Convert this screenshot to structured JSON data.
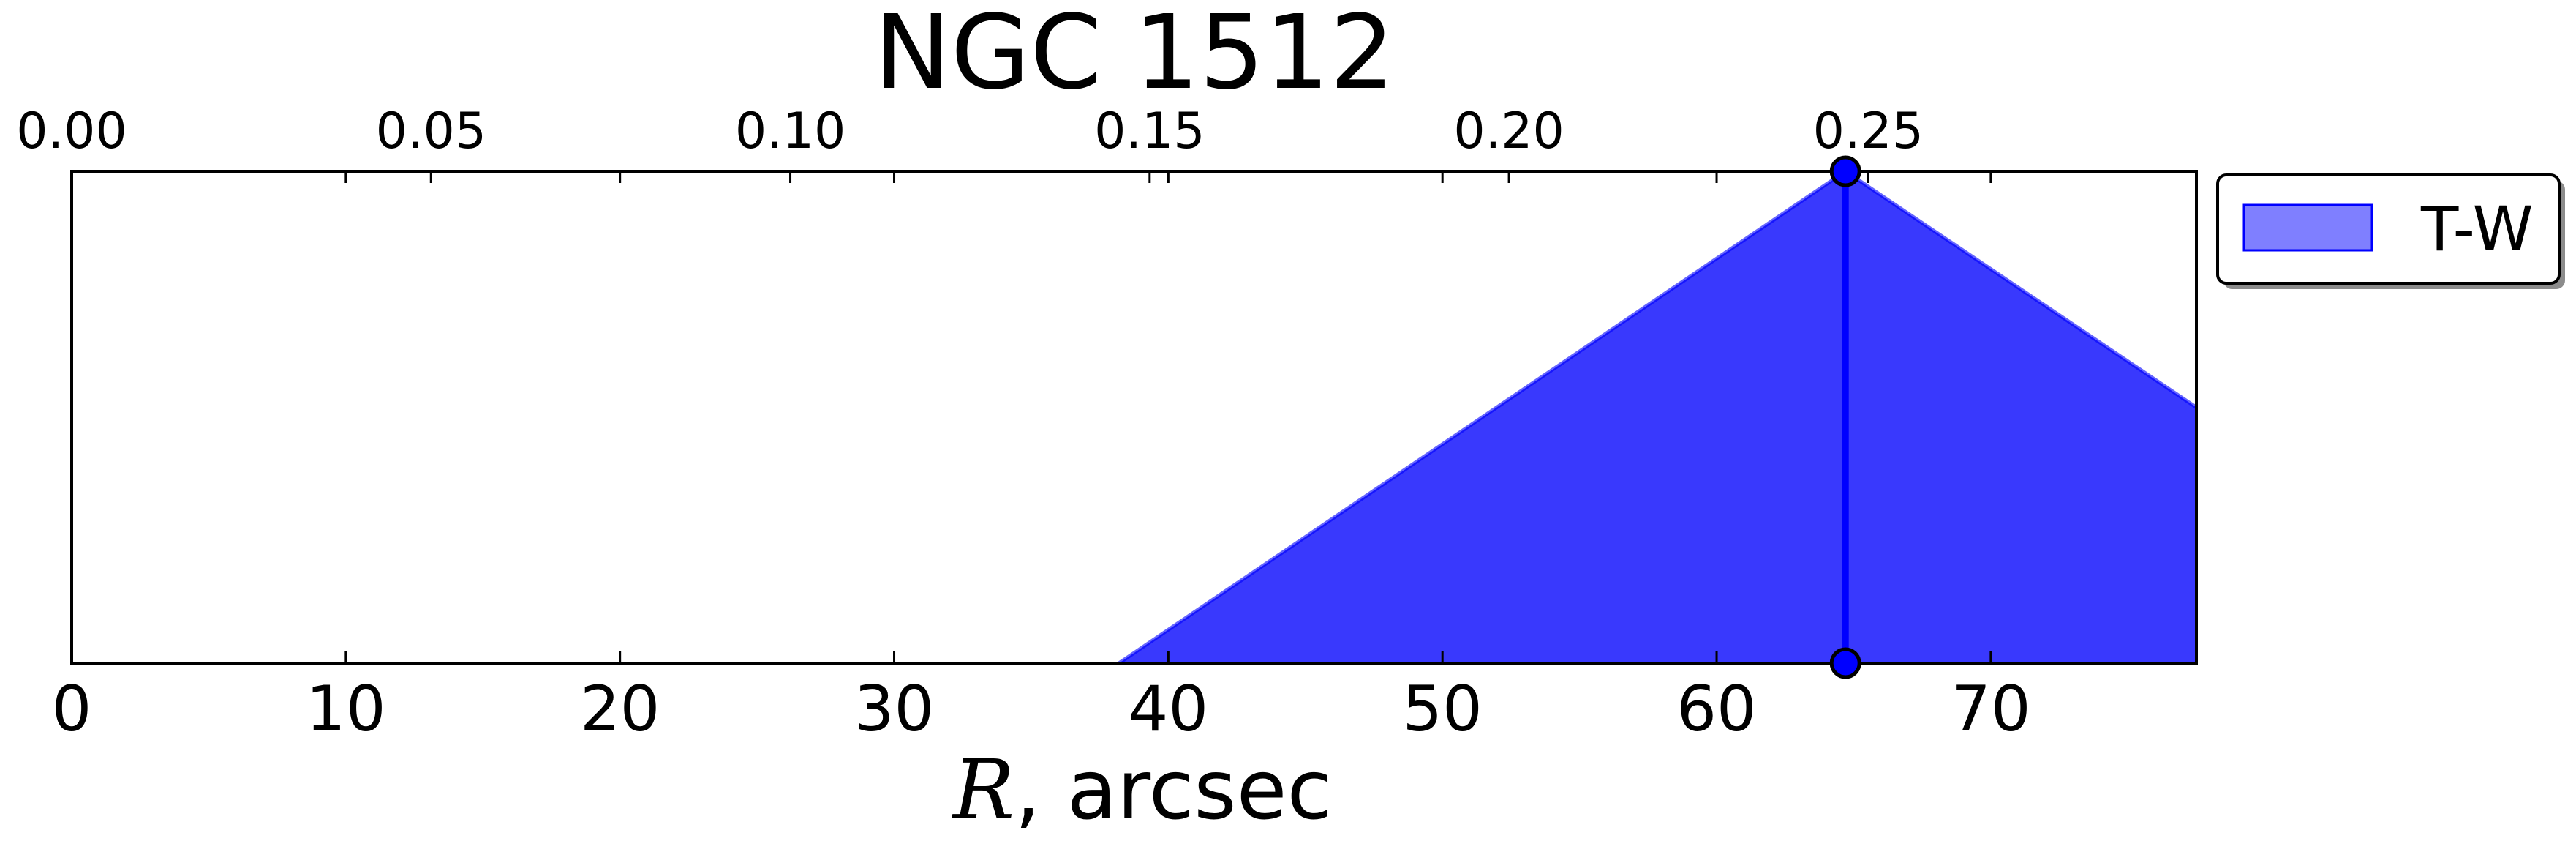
{
  "chart_data": {
    "type": "area",
    "title": "NGC 1512",
    "xlabel_symbol": "R",
    "xlabel_rest": ", arcsec",
    "xlim": [
      0,
      77.5
    ],
    "ylim": [
      0,
      1
    ],
    "x_ticks": [
      0,
      10,
      20,
      30,
      40,
      50,
      60,
      70
    ],
    "x_tick_labels": [
      "0",
      "10",
      "20",
      "30",
      "40",
      "50",
      "60",
      "70"
    ],
    "top_axis": {
      "ticks": [
        0.0,
        0.05,
        0.1,
        0.15,
        0.2,
        0.25
      ],
      "tick_labels": [
        "0.00",
        "0.05",
        "0.10",
        "0.15",
        "0.20",
        "0.25"
      ],
      "scale_per_x_unit": 0.003815
    },
    "series": [
      {
        "name": "T-W",
        "x": [
          38.2,
          64.7,
          77.5
        ],
        "y": [
          0.0,
          1.0,
          0.52
        ],
        "color": "#0000ff",
        "fill_alpha": 0.5
      }
    ],
    "markers": [
      {
        "x": 64.7,
        "y": 1.0
      },
      {
        "x": 64.7,
        "y": 0.0
      }
    ],
    "vertical_line_x": 64.7,
    "legend": {
      "entries": [
        "T-W"
      ],
      "placement": "outside-top-right"
    },
    "grid": false
  }
}
